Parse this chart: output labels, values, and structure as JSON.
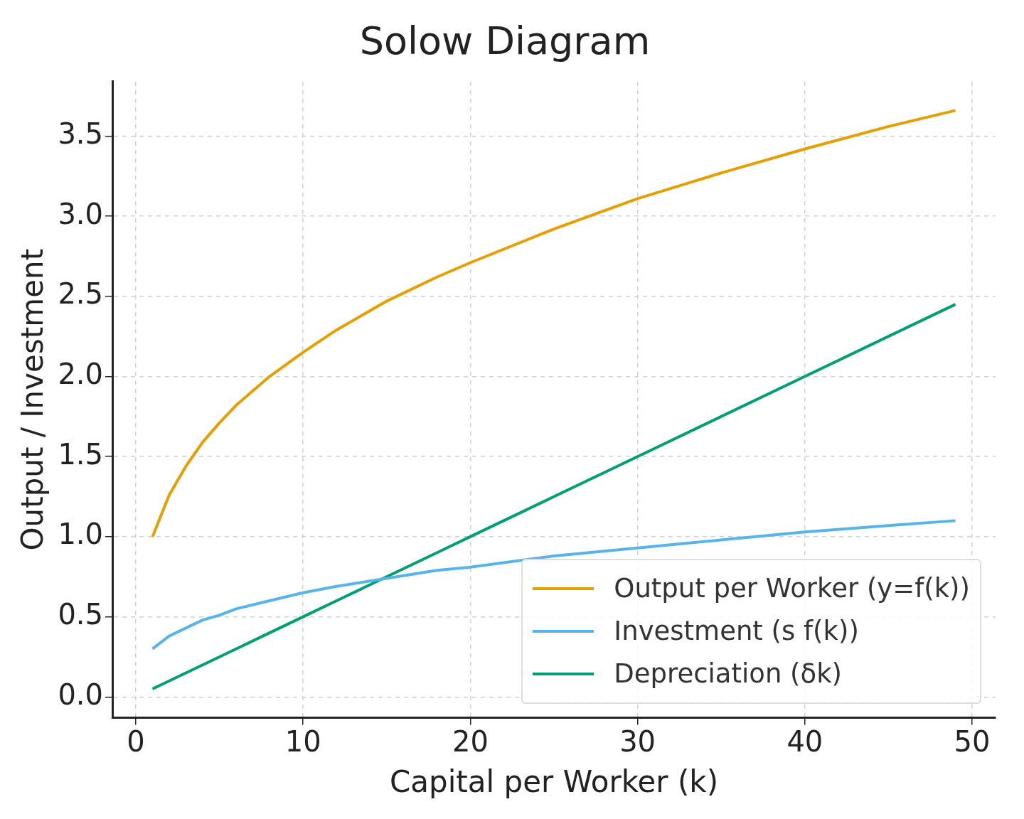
{
  "chart_data": {
    "type": "line",
    "title": "Solow Diagram",
    "xlabel": "Capital per Worker (k)",
    "ylabel": "Output / Investment",
    "x": [
      1,
      2,
      3,
      4,
      5,
      6,
      8,
      10,
      12,
      15,
      18,
      20,
      25,
      30,
      35,
      40,
      45,
      49
    ],
    "series": [
      {
        "name": "Output per Worker (y=f(k))",
        "color": "#e69f00",
        "values": [
          1,
          1.26,
          1.44,
          1.59,
          1.71,
          1.82,
          2.0,
          2.15,
          2.29,
          2.47,
          2.62,
          2.71,
          2.92,
          3.11,
          3.27,
          3.42,
          3.56,
          3.66
        ]
      },
      {
        "name": "Investment (s f(k))",
        "color": "#56b4e9",
        "values": [
          0.3,
          0.38,
          0.43,
          0.48,
          0.51,
          0.55,
          0.6,
          0.65,
          0.69,
          0.74,
          0.79,
          0.81,
          0.88,
          0.93,
          0.98,
          1.03,
          1.07,
          1.1
        ]
      },
      {
        "name": "Depreciation (δk)",
        "color": "#009e73",
        "values": [
          0.05,
          0.1,
          0.15,
          0.2,
          0.25,
          0.3,
          0.4,
          0.5,
          0.6,
          0.75,
          0.9,
          1.0,
          1.25,
          1.5,
          1.75,
          2.0,
          2.25,
          2.45
        ]
      }
    ],
    "xlim": [
      -1.4,
      51.4
    ],
    "xticks": [
      0,
      10,
      20,
      30,
      40,
      50
    ],
    "ylim": [
      -0.13,
      3.84
    ],
    "yticks": [
      {
        "value": 0,
        "label": "0.0"
      },
      {
        "value": 0.5,
        "label": "0.5"
      },
      {
        "value": 1,
        "label": "1.0"
      },
      {
        "value": 1.5,
        "label": "1.5"
      },
      {
        "value": 2,
        "label": "2.0"
      },
      {
        "value": 2.5,
        "label": "2.5"
      },
      {
        "value": 3,
        "label": "3.0"
      },
      {
        "value": 3.5,
        "label": "3.5"
      }
    ],
    "grid": true,
    "legend": "bottom right",
    "marker": "none",
    "line_style": "solid"
  }
}
